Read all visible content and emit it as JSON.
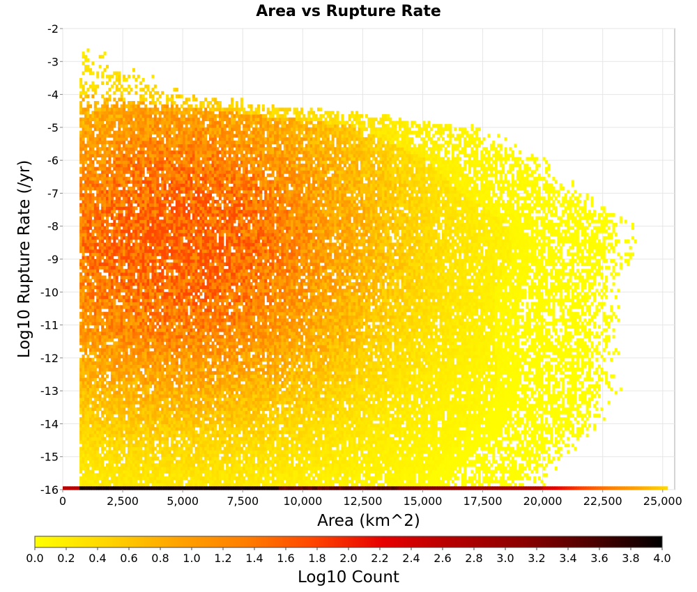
{
  "chart_data": {
    "type": "heatmap",
    "title": "Area vs Rupture Rate",
    "xlabel": "Area (km^2)",
    "ylabel": "Log10 Rupture Rate (/yr)",
    "xlim": [
      0,
      25500
    ],
    "ylim": [
      -16,
      -2
    ],
    "x_ticks": [
      0,
      2500,
      5000,
      7500,
      10000,
      12500,
      15000,
      17500,
      20000,
      22500,
      25000
    ],
    "x_tick_labels": [
      "0",
      "2,500",
      "5,000",
      "7,500",
      "10,000",
      "12,500",
      "15,000",
      "17,500",
      "20,000",
      "22,500",
      "25,000"
    ],
    "y_ticks": [
      -2,
      -3,
      -4,
      -5,
      -6,
      -7,
      -8,
      -9,
      -10,
      -11,
      -12,
      -13,
      -14,
      -15,
      -16
    ],
    "y_tick_labels": [
      "-2",
      "-3",
      "-4",
      "-5",
      "-6",
      "-7",
      "-8",
      "-9",
      "-10",
      "-11",
      "-12",
      "-13",
      "-14",
      "-15",
      "-16"
    ],
    "grid": true,
    "colorbar": {
      "label": "Log10 Count",
      "range": [
        0,
        4
      ],
      "ticks": [
        0.0,
        0.2,
        0.4,
        0.6,
        0.8,
        1.0,
        1.2,
        1.4,
        1.6,
        1.8,
        2.0,
        2.2,
        2.4,
        2.6,
        2.8,
        3.0,
        3.2,
        3.4,
        3.6,
        3.8,
        4.0
      ],
      "tick_labels": [
        "0.0",
        "0.2",
        "0.4",
        "0.6",
        "0.8",
        "1.0",
        "1.2",
        "1.4",
        "1.6",
        "1.8",
        "2.0",
        "2.2",
        "2.4",
        "2.6",
        "2.8",
        "3.0",
        "3.2",
        "3.4",
        "3.6",
        "3.8",
        "4.0"
      ],
      "colors": [
        "#ffff00",
        "#ffd700",
        "#ffa500",
        "#ff7f00",
        "#ff4500",
        "#e60000",
        "#b40000",
        "#8b0000",
        "#4d0000",
        "#000000"
      ]
    },
    "bins": {
      "x_bin_width": 100,
      "y_bin_width": 0.1,
      "x_range": [
        700,
        25200
      ],
      "y_range": [
        -16,
        -2.7
      ]
    },
    "density_summary": {
      "data_x_min": 700,
      "data_x_max_by_rate": [
        [
          -3,
          1000
        ],
        [
          -4,
          4000
        ],
        [
          -5,
          16000
        ],
        [
          -6,
          19000
        ],
        [
          -7,
          20500
        ],
        [
          -8,
          22500
        ],
        [
          -9,
          22700
        ],
        [
          -10,
          21900
        ],
        [
          -11,
          21900
        ],
        [
          -12,
          22000
        ],
        [
          -13,
          22000
        ],
        [
          -14,
          21500
        ],
        [
          -15,
          20000
        ],
        [
          -16,
          18800
        ]
      ],
      "peak": {
        "x": 4700,
        "y": -8.5,
        "log10_count": 1.6
      },
      "bottom_row": {
        "y": -16,
        "x_min": 0,
        "x_max": 25200,
        "log10_count_range": [
          0.4,
          3.9
        ]
      }
    }
  }
}
